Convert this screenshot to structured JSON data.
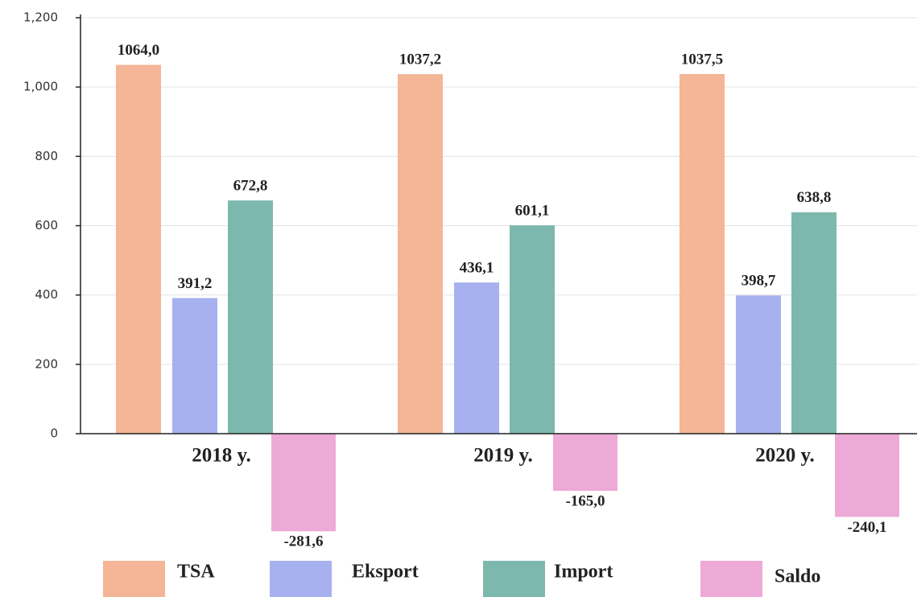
{
  "chart_data": {
    "type": "bar",
    "categories": [
      "2018 y.",
      "2019 y.",
      "2020 y."
    ],
    "series": [
      {
        "name": "TSA",
        "color": "#f4b697",
        "values": [
          1064.0,
          1037.2,
          1037.5
        ],
        "value_labels": [
          "1064,0",
          "1037,2",
          "1037,5"
        ]
      },
      {
        "name": "Eksport",
        "color": "#a7b1ef",
        "values": [
          391.2,
          436.1,
          398.7
        ],
        "value_labels": [
          "391,2",
          "436,1",
          "398,7"
        ]
      },
      {
        "name": "Import",
        "color": "#7db8ae",
        "values": [
          672.8,
          601.1,
          638.8
        ],
        "value_labels": [
          "672,8",
          "601,1",
          "638,8"
        ]
      },
      {
        "name": "Saldo",
        "color": "#eeaad6",
        "values": [
          -281.6,
          -165.0,
          -240.1
        ],
        "value_labels": [
          "-281,6",
          "-165,0",
          "-240,1"
        ]
      }
    ],
    "ylim": [
      0,
      1200
    ],
    "yticks": [
      0,
      200,
      400,
      600,
      800,
      {
        "value": 1000,
        "label": "1,000"
      },
      {
        "value": 1200,
        "label": "1,200"
      }
    ],
    "grid": true
  }
}
